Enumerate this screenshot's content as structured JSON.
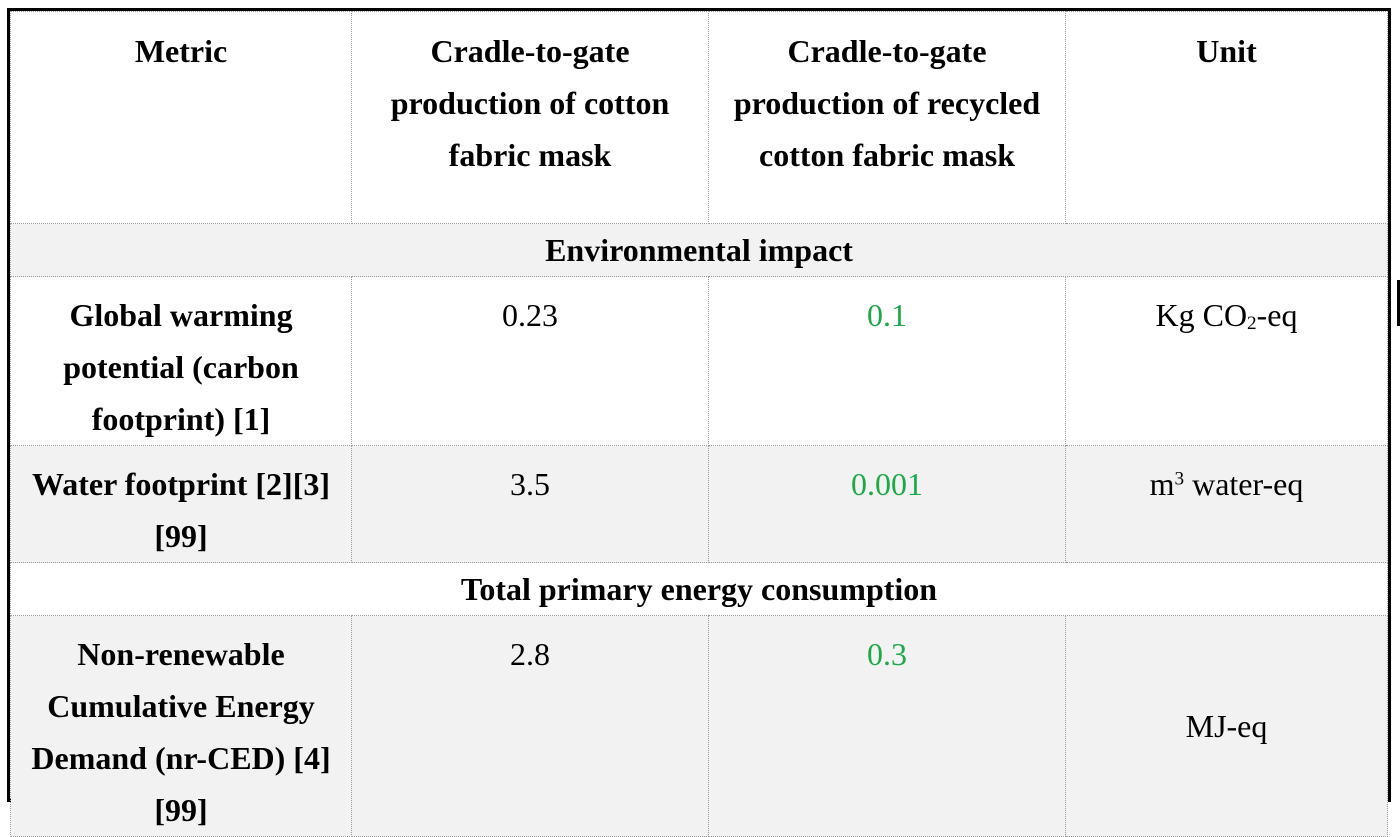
{
  "table": {
    "headers": [
      "Metric",
      "Cradle-to-gate production of cotton fabric mask",
      "Cradle-to-gate production of recycled cotton fabric mask",
      "Unit"
    ],
    "sections": [
      {
        "title": "Environmental impact",
        "rows": [
          {
            "metric": "Global warming potential (carbon footprint) [1]",
            "cotton": "0.23",
            "recycled": "0.1",
            "unit_pre": "Kg CO",
            "unit_script": "2",
            "unit_post": "-eq"
          },
          {
            "metric": "Water footprint [2][3][99]",
            "cotton": "3.5",
            "recycled": "0.001",
            "unit_pre": "m",
            "unit_script": "3",
            "unit_post": " water-eq"
          }
        ]
      },
      {
        "title": "Total primary energy consumption",
        "rows": [
          {
            "metric": "Non-renewable Cumulative Energy Demand (nr-CED) [4][99]",
            "cotton": "2.8",
            "recycled": "0.3",
            "unit": "MJ-eq"
          }
        ]
      }
    ]
  },
  "colors": {
    "highlight_value": "#1fa84a",
    "shaded_row": "#f2f2f2",
    "border": "#000000"
  }
}
